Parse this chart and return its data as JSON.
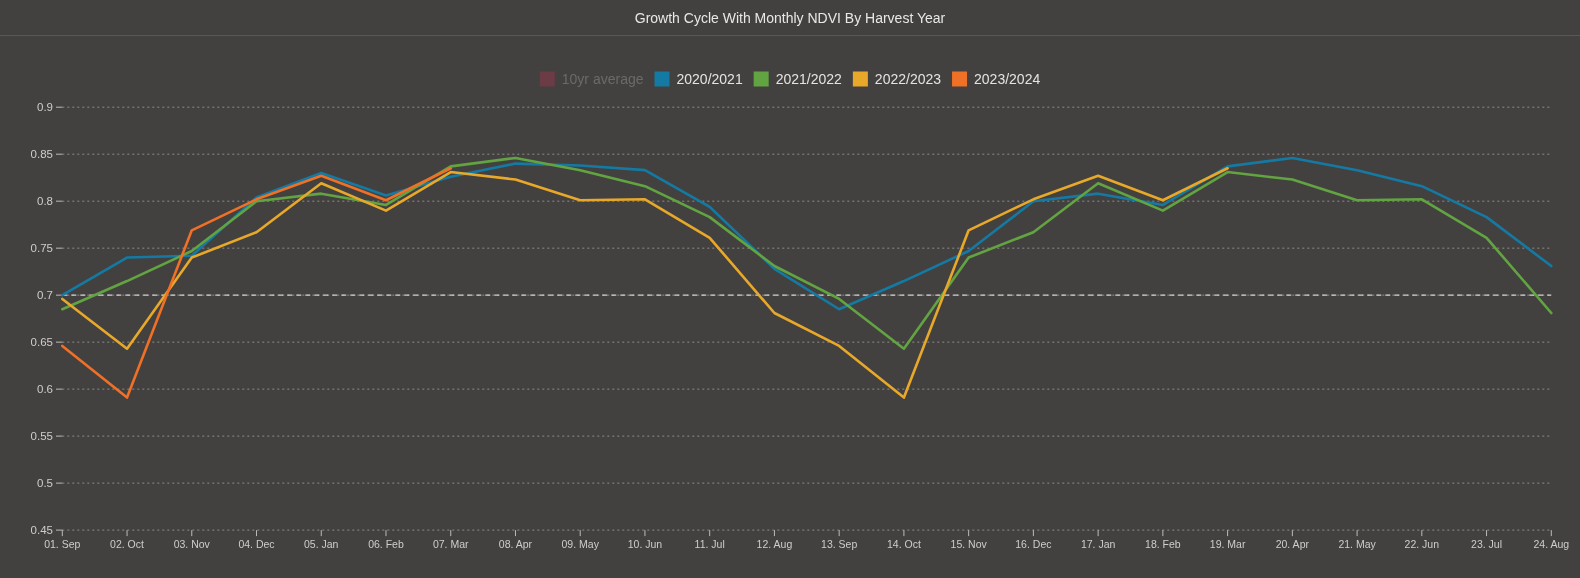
{
  "chart_data": {
    "type": "line",
    "title": "Growth Cycle With Monthly NDVI By Harvest Year",
    "categories": [
      "01. Sep",
      "02. Oct",
      "03. Nov",
      "04. Dec",
      "05. Jan",
      "06. Feb",
      "07. Mar",
      "08. Apr",
      "09. May",
      "10. Jun",
      "11. Jul",
      "12. Aug",
      "13. Sep",
      "14. Oct",
      "15. Nov",
      "16. Dec",
      "17. Jan",
      "18. Feb",
      "19. Mar",
      "20. Apr",
      "21. May",
      "22. Jun",
      "23. Jul",
      "24. Aug"
    ],
    "series": [
      {
        "name": "10yr average",
        "color": "#6b3b46",
        "values": [
          null,
          null,
          null,
          null,
          null,
          null,
          null,
          null,
          null,
          null,
          null,
          null,
          null,
          null,
          null,
          null,
          null,
          null,
          null,
          null,
          null,
          null,
          null,
          null
        ]
      },
      {
        "name": "2020/2021",
        "color": "#147aa3",
        "values": [
          0.7,
          0.74,
          0.742,
          0.804,
          0.83,
          0.806,
          0.826,
          0.84,
          0.838,
          0.833,
          0.794,
          0.728,
          0.685,
          0.715,
          0.747,
          0.8,
          0.808,
          0.796,
          0.837,
          0.846,
          0.833,
          0.816,
          0.783,
          0.731
        ]
      },
      {
        "name": "2021/2022",
        "color": "#62a442",
        "values": [
          0.685,
          0.715,
          0.747,
          0.8,
          0.808,
          0.796,
          0.837,
          0.846,
          0.833,
          0.816,
          0.783,
          0.731,
          0.696,
          0.643,
          0.74,
          0.767,
          0.819,
          0.79,
          0.831,
          0.823,
          0.801,
          0.802,
          0.761,
          0.681
        ]
      },
      {
        "name": "2022/2023",
        "color": "#e8a82a",
        "values": [
          0.696,
          0.643,
          0.74,
          0.767,
          0.819,
          0.79,
          0.831,
          0.823,
          0.801,
          0.802,
          0.761,
          0.681,
          0.646,
          0.591,
          0.769,
          0.802,
          0.827,
          0.801,
          0.835,
          null,
          null,
          null,
          null,
          null
        ]
      },
      {
        "name": "2023/2024",
        "color": "#ef7026",
        "values": [
          0.646,
          0.591,
          0.769,
          0.802,
          0.827,
          0.801,
          0.835,
          null,
          null,
          null,
          null,
          null,
          null,
          null,
          null,
          null,
          null,
          null,
          null,
          null,
          null,
          null,
          null,
          null
        ]
      }
    ],
    "ylim": [
      0.45,
      0.9
    ],
    "yticks": [
      0.45,
      0.5,
      0.55,
      0.6,
      0.65,
      0.7,
      0.75,
      0.8,
      0.85,
      0.9
    ],
    "ref_lines": [
      {
        "axis": "y",
        "value": 0.7,
        "color": "#d2d2d2",
        "line_style": "dashed"
      }
    ],
    "grid": "y",
    "legend": "top"
  }
}
